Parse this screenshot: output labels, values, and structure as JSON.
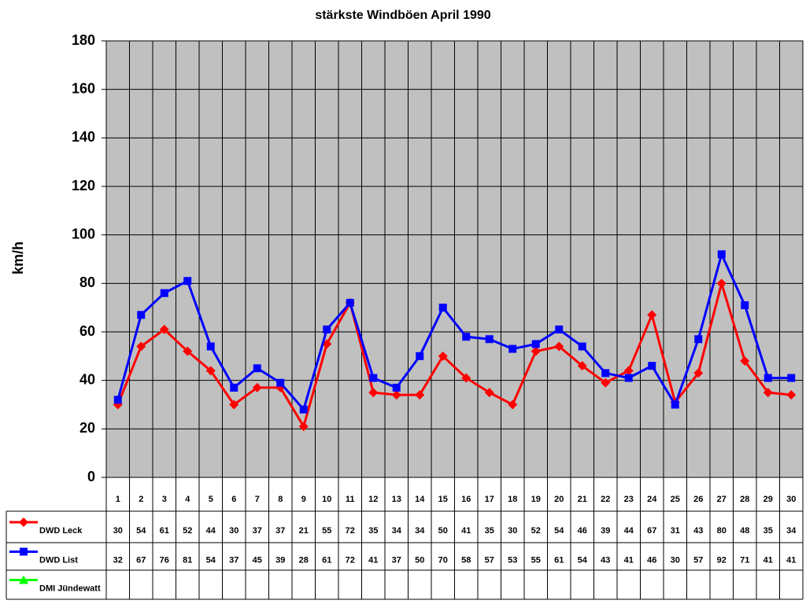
{
  "chart_data": {
    "type": "line",
    "title": "stärkste Windböen April 1990",
    "y_label": "km/h",
    "categories": [
      "1",
      "2",
      "3",
      "4",
      "5",
      "6",
      "7",
      "8",
      "9",
      "10",
      "11",
      "12",
      "13",
      "14",
      "15",
      "16",
      "17",
      "18",
      "19",
      "20",
      "21",
      "22",
      "23",
      "24",
      "25",
      "26",
      "27",
      "28",
      "29",
      "30"
    ],
    "series": [
      {
        "name": "DWD Leck",
        "color": "#ff0000",
        "marker": "diamond",
        "values": [
          30,
          54,
          61,
          52,
          44,
          30,
          37,
          37,
          21,
          55,
          72,
          35,
          34,
          34,
          50,
          41,
          35,
          30,
          52,
          54,
          46,
          39,
          44,
          67,
          31,
          43,
          80,
          48,
          35,
          34
        ]
      },
      {
        "name": "DWD List",
        "color": "#0000ff",
        "marker": "square",
        "values": [
          32,
          67,
          76,
          81,
          54,
          37,
          45,
          39,
          28,
          61,
          72,
          41,
          37,
          50,
          70,
          58,
          57,
          53,
          55,
          61,
          54,
          43,
          41,
          46,
          30,
          57,
          92,
          71,
          41,
          41
        ]
      },
      {
        "name": "DMI Jündewatt",
        "color": "#00ff00",
        "marker": "triangle",
        "values": [
          null,
          null,
          null,
          null,
          null,
          null,
          null,
          null,
          null,
          null,
          null,
          null,
          null,
          null,
          null,
          null,
          null,
          null,
          null,
          null,
          null,
          null,
          null,
          null,
          null,
          null,
          null,
          null,
          null,
          null
        ]
      }
    ],
    "ylim": [
      0,
      180
    ],
    "yticks": [
      0,
      20,
      40,
      60,
      80,
      100,
      120,
      140,
      160,
      180
    ],
    "grid": true,
    "plot_background": "#c0c0c0"
  }
}
